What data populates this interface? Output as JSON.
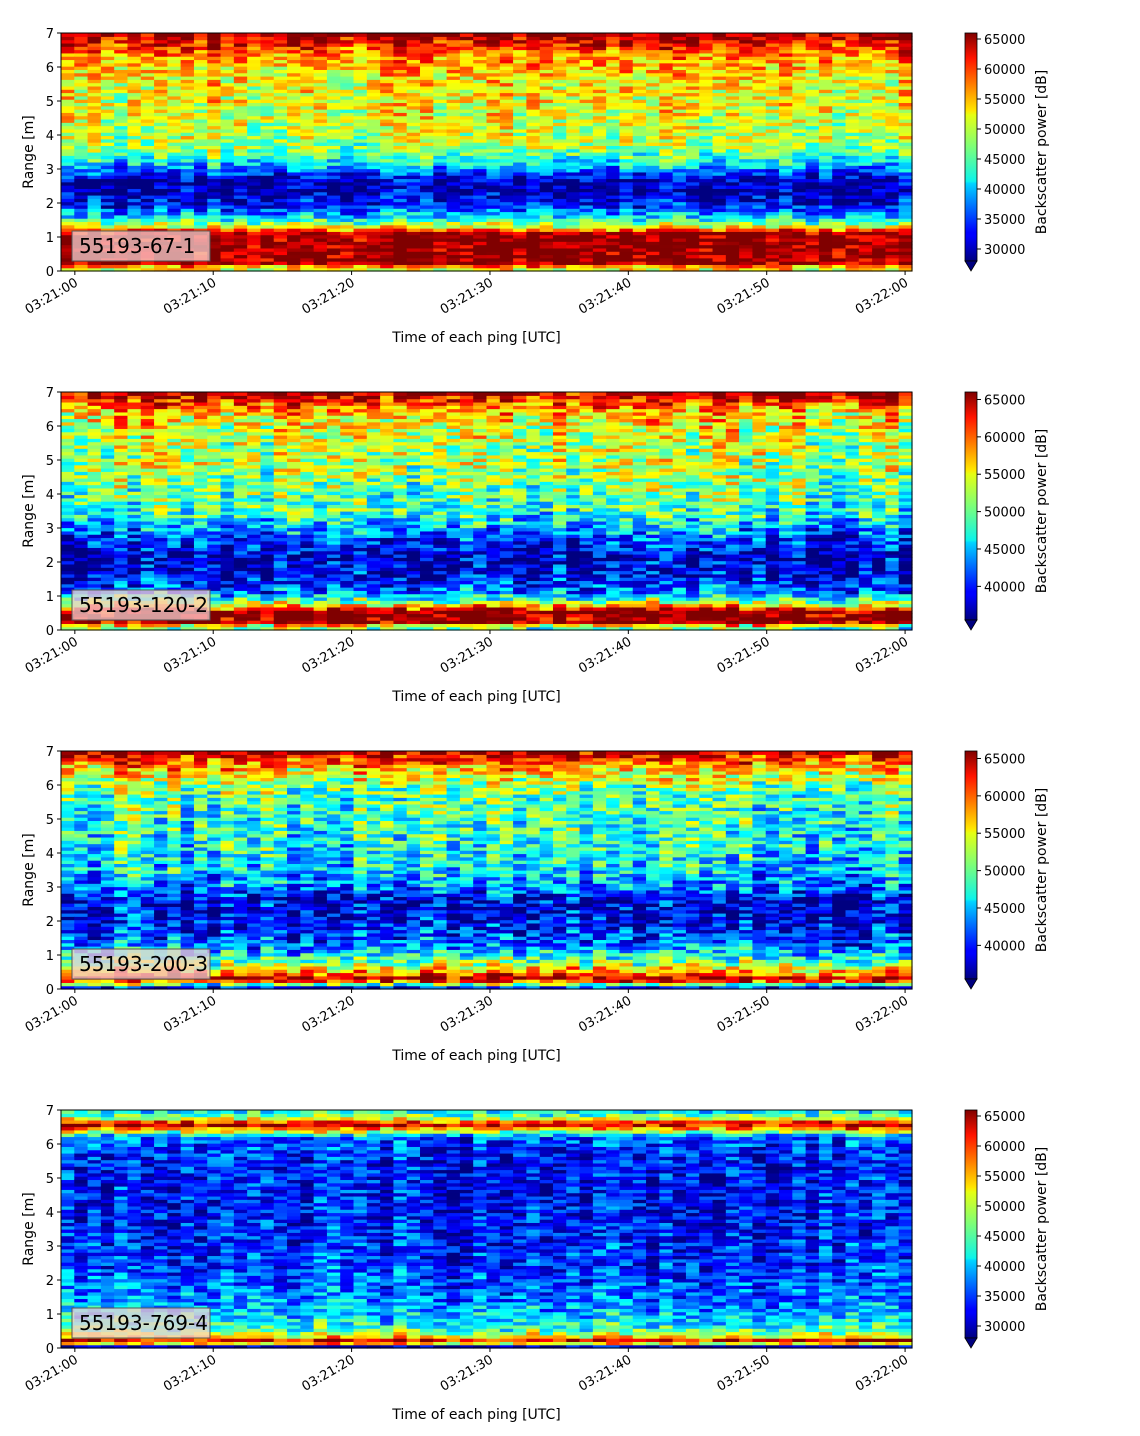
{
  "chart_data": [
    {
      "type": "heatmap",
      "label": "55193-67-1",
      "xlabel": "Time of each ping [UTC]",
      "ylabel": "Range [m]",
      "x_ticks": [
        "03:21:00",
        "03:21:10",
        "03:21:20",
        "03:21:30",
        "03:21:40",
        "03:21:50",
        "03:22:00"
      ],
      "y_ticks": [
        0,
        1,
        2,
        3,
        4,
        5,
        6,
        7
      ],
      "ylim": [
        0,
        7
      ],
      "xlim_seconds": [
        -1,
        60.5
      ],
      "colorbar": {
        "label": "Backscatter power [dB]",
        "ticks": [
          30000,
          35000,
          40000,
          45000,
          50000,
          55000,
          60000,
          65000
        ],
        "range": [
          28000,
          66000
        ],
        "extend": "min",
        "colormap": "jet"
      },
      "range_profile_m": [
        {
          "range": 0.1,
          "value": 52000
        },
        {
          "range": 0.25,
          "value": 66000
        },
        {
          "range": 1.1,
          "value": 66000
        },
        {
          "range": 1.3,
          "value": 52000
        },
        {
          "range": 1.6,
          "value": 41000
        },
        {
          "range": 2.0,
          "value": 33000
        },
        {
          "range": 2.6,
          "value": 29000
        },
        {
          "range": 3.1,
          "value": 40000
        },
        {
          "range": 3.6,
          "value": 48000
        },
        {
          "range": 4.5,
          "value": 51000
        },
        {
          "range": 5.5,
          "value": 52000
        },
        {
          "range": 6.3,
          "value": 56000
        },
        {
          "range": 6.7,
          "value": 61000
        },
        {
          "range": 7.0,
          "value": 66000
        }
      ]
    },
    {
      "type": "heatmap",
      "label": "55193-120-2",
      "xlabel": "Time of each ping [UTC]",
      "ylabel": "Range [m]",
      "x_ticks": [
        "03:21:00",
        "03:21:10",
        "03:21:20",
        "03:21:30",
        "03:21:40",
        "03:21:50",
        "03:22:00"
      ],
      "y_ticks": [
        0,
        1,
        2,
        3,
        4,
        5,
        6,
        7
      ],
      "ylim": [
        0,
        7
      ],
      "xlim_seconds": [
        -1,
        60.5
      ],
      "colorbar": {
        "label": "Backscatter power [dB]",
        "ticks": [
          40000,
          45000,
          50000,
          55000,
          60000,
          65000
        ],
        "range": [
          35500,
          66000
        ],
        "extend": "min",
        "colormap": "jet"
      },
      "range_profile_m": [
        {
          "range": 0.1,
          "value": 50000
        },
        {
          "range": 0.25,
          "value": 66000
        },
        {
          "range": 0.55,
          "value": 66000
        },
        {
          "range": 0.8,
          "value": 52000
        },
        {
          "range": 1.1,
          "value": 43000
        },
        {
          "range": 1.6,
          "value": 38500
        },
        {
          "range": 2.2,
          "value": 37000
        },
        {
          "range": 2.8,
          "value": 42000
        },
        {
          "range": 3.4,
          "value": 48000
        },
        {
          "range": 4.5,
          "value": 51000
        },
        {
          "range": 5.5,
          "value": 52500
        },
        {
          "range": 6.3,
          "value": 55000
        },
        {
          "range": 6.7,
          "value": 60000
        },
        {
          "range": 7.0,
          "value": 65000
        }
      ]
    },
    {
      "type": "heatmap",
      "label": "55193-200-3",
      "xlabel": "Time of each ping [UTC]",
      "ylabel": "Range [m]",
      "x_ticks": [
        "03:21:00",
        "03:21:10",
        "03:21:20",
        "03:21:30",
        "03:21:40",
        "03:21:50",
        "03:22:00"
      ],
      "y_ticks": [
        0,
        1,
        2,
        3,
        4,
        5,
        6,
        7
      ],
      "ylim": [
        0,
        7
      ],
      "xlim_seconds": [
        -1,
        60.5
      ],
      "colorbar": {
        "label": "Backscatter power [dB]",
        "ticks": [
          40000,
          45000,
          50000,
          55000,
          60000,
          65000
        ],
        "range": [
          35500,
          66000
        ],
        "extend": "min",
        "colormap": "jet"
      },
      "range_profile_m": [
        {
          "range": 0.05,
          "value": 40000
        },
        {
          "range": 0.3,
          "value": 66000
        },
        {
          "range": 0.45,
          "value": 60000
        },
        {
          "range": 0.8,
          "value": 50000
        },
        {
          "range": 1.3,
          "value": 43000
        },
        {
          "range": 2.0,
          "value": 39000
        },
        {
          "range": 2.6,
          "value": 38500
        },
        {
          "range": 3.1,
          "value": 44000
        },
        {
          "range": 3.8,
          "value": 47000
        },
        {
          "range": 5.0,
          "value": 48500
        },
        {
          "range": 5.8,
          "value": 50000
        },
        {
          "range": 6.4,
          "value": 55000
        },
        {
          "range": 6.8,
          "value": 61000
        },
        {
          "range": 7.0,
          "value": 66000
        }
      ]
    },
    {
      "type": "heatmap",
      "label": "55193-769-4",
      "xlabel": "Time of each ping [UTC]",
      "ylabel": "Range [m]",
      "x_ticks": [
        "03:21:00",
        "03:21:10",
        "03:21:20",
        "03:21:30",
        "03:21:40",
        "03:21:50",
        "03:22:00"
      ],
      "y_ticks": [
        0,
        1,
        2,
        3,
        4,
        5,
        6,
        7
      ],
      "ylim": [
        0,
        7
      ],
      "xlim_seconds": [
        -1,
        60.5
      ],
      "colorbar": {
        "label": "Backscatter power [dB]",
        "ticks": [
          30000,
          35000,
          40000,
          45000,
          50000,
          55000,
          60000,
          65000
        ],
        "range": [
          28000,
          66000
        ],
        "extend": "min",
        "colormap": "jet"
      },
      "range_profile_m": [
        {
          "range": 0.05,
          "value": 30000
        },
        {
          "range": 0.2,
          "value": 66000
        },
        {
          "range": 0.35,
          "value": 52000
        },
        {
          "range": 0.6,
          "value": 44000
        },
        {
          "range": 1.0,
          "value": 40000
        },
        {
          "range": 1.6,
          "value": 37000
        },
        {
          "range": 2.5,
          "value": 34500
        },
        {
          "range": 4.0,
          "value": 33000
        },
        {
          "range": 5.5,
          "value": 33500
        },
        {
          "range": 6.2,
          "value": 36000
        },
        {
          "range": 6.45,
          "value": 55000
        },
        {
          "range": 6.6,
          "value": 65000
        },
        {
          "range": 6.75,
          "value": 50000
        },
        {
          "range": 7.0,
          "value": 40000
        }
      ]
    }
  ]
}
